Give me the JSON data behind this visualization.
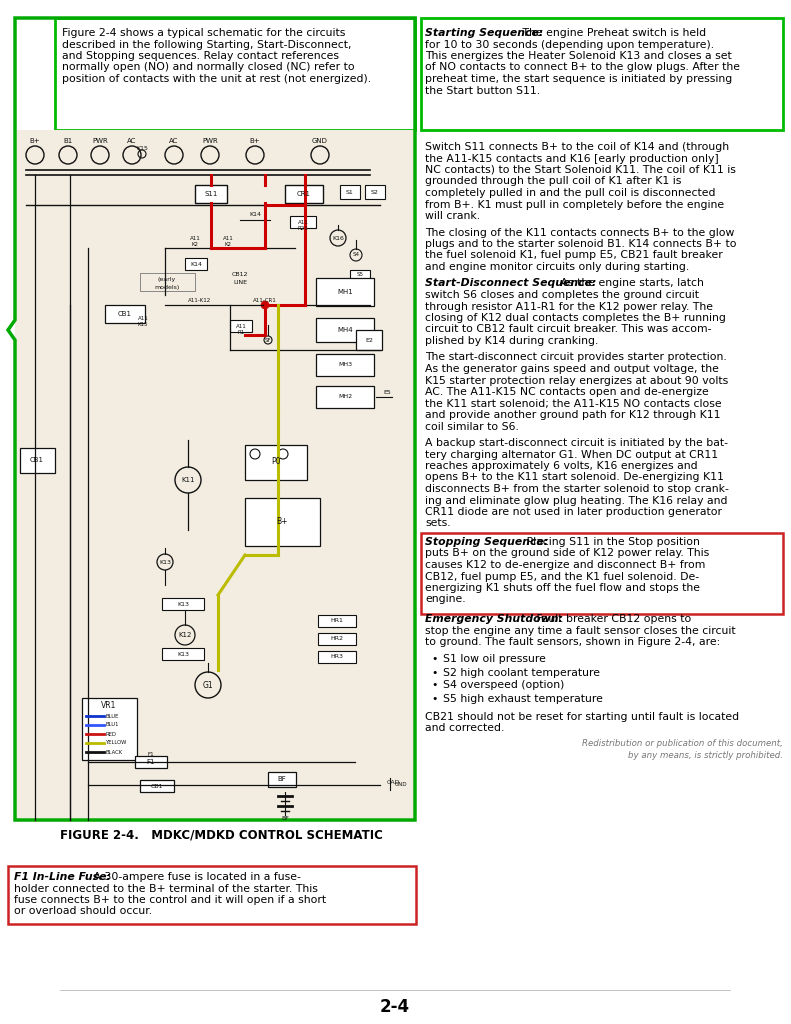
{
  "page_bg": "#ffffff",
  "page_num": "2-4",
  "title_caption": "FIGURE 2-4.   MDKC/MDKD CONTROL SCHEMATIC",
  "green_box_text_lines": [
    "Figure 2-4 shows a typical schematic for the circuits",
    "described in the following Starting, Start-Disconnect,",
    "and Stopping sequences. Relay contact references",
    "normally open (NO) and normally closed (NC) refer to",
    "position of contacts with the unit at rest (not energized)."
  ],
  "starting_seq_title": "Starting Sequence:",
  "starting_seq_lines": [
    " The engine Preheat switch is held",
    "for 10 to 30 seconds (depending upon temperature).",
    "This energizes the Heater Solenoid K13 and closes a set",
    "of NO contacts to connect B+ to the glow plugs. After the",
    "preheat time, the start sequence is initiated by pressing",
    "the Start button S11."
  ],
  "para1_lines": [
    "Switch S11 connects B+ to the coil of K14 and (through",
    "the A11-K15 contacts and K16 [early production only]",
    "NC contacts) to the Start Solenoid K11. The coil of K11 is",
    "grounded through the pull coil of K1 after K1 is",
    "completely pulled in and the pull coil is disconnected",
    "from B+. K1 must pull in completely before the engine",
    "will crank."
  ],
  "para2_lines": [
    "The closing of the K11 contacts connects B+ to the glow",
    "plugs and to the starter solenoid B1. K14 connects B+ to",
    "the fuel solenoid K1, fuel pump E5, CB21 fault breaker",
    "and engine monitor circuits only during starting."
  ],
  "start_disc_title": "Start-Disconnect Sequence:",
  "start_disc_lines": [
    " As the engine starts, latch",
    "switch S6 closes and completes the ground circuit",
    "through resistor A11-R1 for the K12 power relay. The",
    "closing of K12 dual contacts completes the B+ running",
    "circuit to CB12 fault circuit breaker. This was accom-",
    "plished by K14 during cranking."
  ],
  "para3_lines": [
    "The start-disconnect circuit provides starter protection.",
    "As the generator gains speed and output voltage, the",
    "K15 starter protection relay energizes at about 90 volts",
    "AC. The A11-K15 NC contacts open and de-energize",
    "the K11 start solenoid; the A11-K15 NO contacts close",
    "and provide another ground path for K12 through K11",
    "coil similar to S6."
  ],
  "para4_lines": [
    "A backup start-disconnect circuit is initiated by the bat-",
    "tery charging alternator G1. When DC output at CR11",
    "reaches approximately 6 volts, K16 energizes and",
    "opens B+ to the K11 start solenoid. De-energizing K11",
    "disconnects B+ from the starter solenoid to stop crank-",
    "ing and eliminate glow plug heating. The K16 relay and",
    "CR11 diode are not used in later production generator",
    "sets."
  ],
  "stopping_seq_title": "Stopping Sequence:",
  "stopping_seq_lines": [
    " Placing S11 in the Stop position",
    "puts B+ on the ground side of K12 power relay. This",
    "causes K12 to de-energize and disconnect B+ from",
    "CB12, fuel pump E5, and the K1 fuel solenoid. De-",
    "energizing K1 shuts off the fuel flow and stops the",
    "engine."
  ],
  "emerg_title": "Emergency Shutdown:",
  "emerg_lines": [
    " Fault breaker CB12 opens to",
    "stop the engine any time a fault sensor closes the circuit",
    "to ground. The fault sensors, shown in Figure 2-4, are:"
  ],
  "bullets": [
    "S1 low oil pressure",
    "S2 high coolant temperature",
    "S4 overspeed (option)",
    "S5 high exhaust temperature"
  ],
  "para5_lines": [
    "CB21 should not be reset for starting until fault is located",
    "and corrected."
  ],
  "f1_title": "F1 In-Line Fuse:",
  "f1_lines": [
    " A 30-ampere fuse is located in a fuse-",
    "holder connected to the B+ terminal of the starter. This",
    "fuse connects B+ to the control and it will open if a short",
    "or overload should occur."
  ],
  "redist_lines": [
    "Redistribution or publication of this document,",
    "by any means, is strictly prohibited."
  ],
  "green_outline_color": "#00bb00",
  "red_outline_color": "#cc2222",
  "diagram_line_color": "#111111",
  "diagram_red_wire": "#cc0000",
  "diagram_yellow_wire": "#bbbb00",
  "diagram_green_border": "#00aa00"
}
